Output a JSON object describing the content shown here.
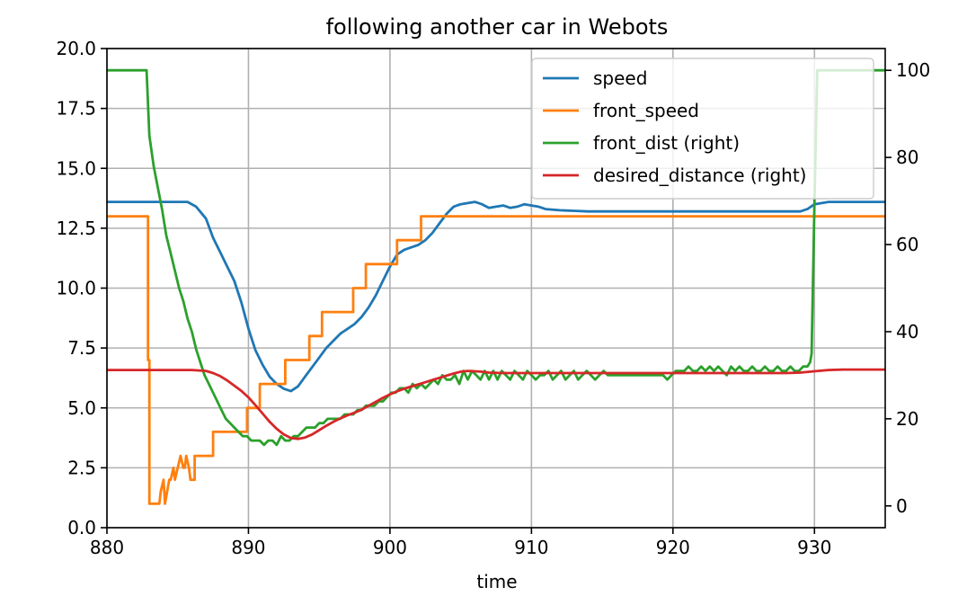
{
  "chart_data": {
    "type": "line",
    "title": "following another car in Webots",
    "xlabel": "time",
    "ylabel": "",
    "ylabel_right": "",
    "xlim": [
      880,
      935
    ],
    "ylim": [
      0,
      20
    ],
    "ylim_right": [
      -5,
      105
    ],
    "x_ticks": [
      880,
      890,
      900,
      910,
      920,
      930
    ],
    "x_tick_labels": [
      "880",
      "890",
      "900",
      "910",
      "920",
      "930"
    ],
    "y_ticks": [
      0,
      2.5,
      5,
      7.5,
      10,
      12.5,
      15,
      17.5,
      20
    ],
    "y_tick_labels": [
      "0.0",
      "2.5",
      "5.0",
      "7.5",
      "10.0",
      "12.5",
      "15.0",
      "17.5",
      "20.0"
    ],
    "y_right_ticks": [
      0,
      20,
      40,
      60,
      80,
      100
    ],
    "y_right_tick_labels": [
      "0",
      "20",
      "40",
      "60",
      "80",
      "100"
    ],
    "grid": true,
    "legend_position": "top-right",
    "series": [
      {
        "name": "speed",
        "color": "#1f77b4",
        "axis": "left",
        "x": [
          880,
          885.7,
          886.3,
          887.0,
          887.5,
          888.0,
          888.5,
          889.0,
          889.5,
          890.0,
          890.5,
          891.0,
          891.5,
          892.0,
          892.5,
          893.0,
          893.5,
          894.0,
          894.5,
          895.0,
          895.5,
          896.0,
          896.5,
          897.0,
          897.5,
          898.0,
          898.5,
          899.0,
          899.5,
          900.0,
          900.5,
          901.0,
          901.5,
          902.0,
          902.5,
          903.0,
          903.5,
          904.0,
          904.5,
          905.0,
          905.5,
          906.0,
          906.5,
          907.0,
          907.5,
          908.0,
          908.5,
          909.0,
          909.5,
          910.0,
          910.5,
          911.0,
          912.0,
          914.0,
          920.0,
          929.0,
          929.5,
          930.0,
          931.0,
          932.0,
          935.0
        ],
        "y": [
          13.6,
          13.6,
          13.4,
          12.9,
          12.1,
          11.5,
          10.9,
          10.3,
          9.4,
          8.3,
          7.4,
          6.8,
          6.3,
          6.0,
          5.8,
          5.7,
          5.9,
          6.3,
          6.7,
          7.1,
          7.5,
          7.8,
          8.1,
          8.3,
          8.5,
          8.8,
          9.2,
          9.7,
          10.3,
          10.9,
          11.4,
          11.6,
          11.7,
          11.8,
          12.0,
          12.3,
          12.7,
          13.1,
          13.4,
          13.5,
          13.55,
          13.6,
          13.5,
          13.35,
          13.4,
          13.45,
          13.35,
          13.4,
          13.5,
          13.45,
          13.4,
          13.3,
          13.25,
          13.2,
          13.2,
          13.2,
          13.3,
          13.5,
          13.6,
          13.6,
          13.6
        ]
      },
      {
        "name": "front_speed",
        "color": "#ff7f0e",
        "axis": "left",
        "x": [
          880,
          882.9,
          882.9,
          883.0,
          883.0,
          883.6,
          883.7,
          883.8,
          884.0,
          884.1,
          884.4,
          884.5,
          884.7,
          884.8,
          885.2,
          885.4,
          885.5,
          885.6,
          885.8,
          885.9,
          886.2,
          886.2,
          887.5,
          887.5,
          888.2,
          888.2,
          889.9,
          889.9,
          890.8,
          890.8,
          891.5,
          891.5,
          892.6,
          892.6,
          893.4,
          893.4,
          894.3,
          894.3,
          895.2,
          895.2,
          895.9,
          895.9,
          897.4,
          897.4,
          898.3,
          898.3,
          899.2,
          899.2,
          899.8,
          899.8,
          900.5,
          900.5,
          902.2,
          902.2,
          935
        ],
        "y": [
          13.0,
          13.0,
          7.0,
          7.0,
          1.0,
          1.0,
          1.0,
          1.5,
          2.0,
          1.0,
          2.0,
          2.0,
          2.5,
          2.0,
          3.0,
          2.5,
          2.5,
          3.0,
          2.5,
          2.0,
          2.0,
          3.0,
          3.0,
          4.0,
          4.0,
          4.0,
          4.0,
          5.0,
          5.0,
          6.0,
          6.0,
          6.0,
          6.0,
          7.0,
          7.0,
          7.0,
          7.0,
          8.0,
          8.0,
          9.0,
          9.0,
          9.0,
          9.0,
          10.0,
          10.0,
          11.0,
          11.0,
          11.0,
          11.0,
          11.0,
          11.0,
          12.0,
          12.0,
          13.0,
          13.0
        ]
      },
      {
        "name": "front_dist (right)",
        "color": "#2ca02c",
        "axis": "right",
        "x": [
          880,
          882.8,
          883.0,
          883.3,
          883.6,
          883.9,
          884.2,
          884.5,
          884.8,
          885.1,
          885.4,
          885.7,
          886.0,
          886.3,
          886.6,
          886.9,
          887.2,
          887.5,
          887.8,
          888.1,
          888.4,
          888.7,
          889.0,
          889.3,
          889.6,
          889.9,
          890.2,
          890.5,
          890.8,
          891.1,
          891.4,
          891.7,
          892.0,
          892.3,
          892.6,
          892.9,
          893.2,
          893.5,
          893.8,
          894.1,
          894.4,
          894.7,
          895.0,
          895.3,
          895.6,
          895.9,
          896.2,
          896.5,
          896.8,
          897.1,
          897.4,
          897.7,
          898.0,
          898.3,
          898.6,
          898.9,
          899.2,
          899.5,
          899.8,
          900.1,
          900.4,
          900.7,
          901.0,
          901.3,
          901.6,
          901.9,
          902.2,
          902.5,
          902.8,
          903.1,
          903.4,
          903.7,
          904.0,
          904.3,
          904.6,
          904.9,
          905.2,
          905.5,
          905.8,
          906.1,
          906.4,
          906.7,
          907.0,
          907.3,
          907.6,
          907.9,
          908.2,
          908.5,
          908.8,
          909.1,
          909.4,
          909.7,
          910.0,
          910.3,
          910.6,
          910.9,
          911.2,
          911.5,
          911.8,
          912.1,
          912.4,
          912.7,
          913.0,
          913.3,
          913.6,
          913.9,
          914.2,
          914.5,
          914.8,
          915.1,
          915.4,
          915.7,
          916.0,
          916.3,
          916.6,
          916.9,
          917.2,
          917.5,
          917.8,
          918.1,
          918.4,
          918.7,
          919.0,
          919.3,
          919.6,
          919.9,
          920.2,
          920.5,
          920.8,
          921.1,
          921.4,
          921.7,
          922.0,
          922.3,
          922.6,
          922.9,
          923.2,
          923.5,
          923.8,
          924.1,
          924.4,
          924.7,
          925.0,
          925.3,
          925.6,
          925.9,
          926.2,
          926.5,
          926.8,
          927.1,
          927.4,
          927.7,
          928.0,
          928.3,
          928.6,
          928.9,
          929.2,
          929.5,
          929.7,
          929.8,
          930.0,
          930.2,
          932.0,
          935
        ],
        "y": [
          100,
          100,
          85,
          78,
          73,
          68,
          62,
          58,
          54,
          50,
          47,
          43,
          40,
          36,
          33,
          30,
          28,
          26,
          24,
          22,
          20,
          19,
          18,
          17,
          16,
          16,
          15,
          15,
          15,
          14,
          15,
          15,
          14,
          16,
          15,
          15,
          16,
          16,
          17,
          18,
          18,
          18,
          19,
          19,
          20,
          20,
          20,
          20,
          21,
          21,
          21,
          22,
          22,
          23,
          23,
          23,
          24,
          24,
          25,
          26,
          26,
          27,
          27,
          26,
          28,
          27,
          28,
          27,
          28,
          29,
          28,
          30,
          29,
          29,
          30,
          28,
          31,
          29,
          31,
          30,
          29,
          31,
          29,
          31,
          29,
          31,
          30,
          29,
          31,
          30,
          29,
          31,
          30,
          29,
          30,
          30,
          31,
          29,
          30,
          31,
          29,
          30,
          31,
          29,
          30,
          31,
          30,
          29,
          30,
          31,
          30,
          30,
          30,
          30,
          30,
          30,
          30,
          30,
          30,
          30,
          30,
          30,
          30,
          30,
          29,
          30,
          31,
          31,
          31,
          32,
          31,
          31,
          32,
          31,
          32,
          31,
          32,
          31,
          30,
          32,
          31,
          32,
          31,
          31,
          32,
          31,
          31,
          32,
          31,
          31,
          32,
          31,
          31,
          32,
          31,
          31,
          32,
          32,
          33,
          35,
          70,
          100,
          100,
          100
        ]
      },
      {
        "name": "desired_distance (right)",
        "color": "#d62728",
        "axis": "right",
        "x": [
          880,
          885.0,
          886.0,
          887.0,
          887.5,
          888.0,
          888.5,
          889.0,
          889.5,
          890.0,
          890.5,
          891.0,
          891.5,
          892.0,
          892.5,
          893.0,
          893.5,
          894.0,
          894.5,
          895.0,
          895.5,
          896.0,
          896.5,
          897.0,
          897.5,
          898.0,
          898.5,
          899.0,
          899.5,
          900.0,
          900.5,
          901.0,
          901.5,
          902.0,
          902.5,
          903.0,
          903.5,
          904.0,
          904.5,
          905.0,
          905.5,
          906.0,
          906.5,
          907.0,
          908.0,
          910.0,
          920.0,
          928.0,
          929.0,
          930.0,
          931.0,
          932.0,
          935
        ],
        "y": [
          31.2,
          31.2,
          31.2,
          31.0,
          30.5,
          29.8,
          28.8,
          27.6,
          26.4,
          24.9,
          23.1,
          21.2,
          19.3,
          17.7,
          16.4,
          15.6,
          15.4,
          15.7,
          16.4,
          17.4,
          18.4,
          19.3,
          20.1,
          20.8,
          21.4,
          22.1,
          23.0,
          23.9,
          24.8,
          25.6,
          26.3,
          26.9,
          27.4,
          27.9,
          28.4,
          28.9,
          29.4,
          29.9,
          30.4,
          30.8,
          31.0,
          30.9,
          30.8,
          30.6,
          30.5,
          30.5,
          30.5,
          30.5,
          30.6,
          30.9,
          31.2,
          31.3,
          31.3
        ]
      }
    ]
  }
}
